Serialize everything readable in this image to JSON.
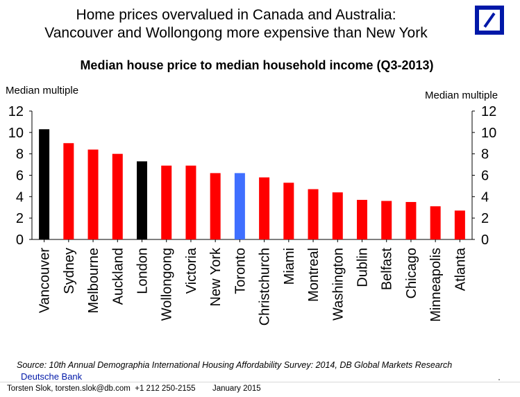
{
  "header": {
    "title_line1": "Home prices overvalued in Canada and Australia:",
    "title_line2": "Vancouver and Wollongong more expensive than New York"
  },
  "logo": {
    "icon": "deutsche-bank-slash-square-icon",
    "color": "#0018a8"
  },
  "chart_data": {
    "type": "bar",
    "title": "Median house price to median household income (Q3-2013)",
    "ylabel_left": "Median multiple",
    "ylabel_right": "Median multiple",
    "ylim": [
      0,
      12
    ],
    "yticks": [
      0,
      2,
      4,
      6,
      8,
      10,
      12
    ],
    "grid": false,
    "categories": [
      "Vancouver",
      "Sydney",
      "Melbourne",
      "Auckland",
      "London",
      "Wollongong",
      "Victoria",
      "New York",
      "Toronto",
      "Christchurch",
      "Miami",
      "Montreal",
      "Washington",
      "Dublin",
      "Belfast",
      "Chicago",
      "Minneapolis",
      "Atlanta"
    ],
    "values": [
      10.3,
      9.0,
      8.4,
      8.0,
      7.3,
      6.9,
      6.9,
      6.2,
      6.2,
      5.8,
      5.3,
      4.7,
      4.4,
      3.7,
      3.6,
      3.5,
      3.1,
      2.7
    ],
    "colors": [
      "#000000",
      "#ff0000",
      "#ff0000",
      "#ff0000",
      "#000000",
      "#ff0000",
      "#ff0000",
      "#ff0000",
      "#3f6fff",
      "#ff0000",
      "#ff0000",
      "#ff0000",
      "#ff0000",
      "#ff0000",
      "#ff0000",
      "#ff0000",
      "#ff0000",
      "#ff0000"
    ]
  },
  "source": "Source: 10th Annual Demographia International Housing Affordability Survey: 2014, DB Global Markets Research",
  "footer": {
    "brand": "Deutsche Bank",
    "author_line": "Torsten Slok, torsten.slok@db.com  +1 212 250-2155",
    "date": "January 2015"
  }
}
